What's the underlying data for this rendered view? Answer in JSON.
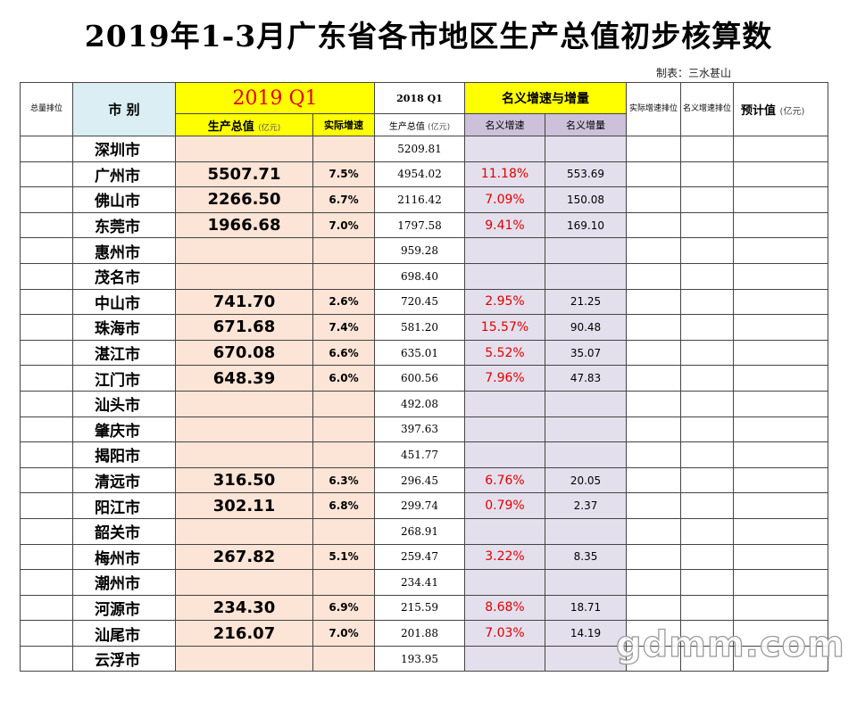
{
  "title": "2019年1-3月广东省各市地区生产总值初步核算数",
  "maker": "制表：三水甚山",
  "headers": {
    "rank_total": "总量排位",
    "city": "市    别",
    "q1_2019": "2019 Q1",
    "y2018_q1": "2018 Q1",
    "nominal": "名义增速与增量",
    "real_rank": "实际增速排位",
    "nominal_rank": "名义增速排位",
    "estimate": "预计值",
    "estimate_unit": "(亿元)",
    "gdp": "生产总值",
    "gdp_unit": "(亿元)",
    "real_growth": "实际增速",
    "gdp_2018": "生产总值",
    "gdp_2018_unit": "(亿元)",
    "nominal_growth": "名义增速",
    "nominal_increase": "名义增量"
  },
  "rows": [
    {
      "city": "深圳市",
      "gdp": "",
      "growth": "",
      "gdp2018": "5209.81",
      "nom_rate": "",
      "nom_inc": ""
    },
    {
      "city": "广州市",
      "gdp": "5507.71",
      "growth": "7.5%",
      "gdp2018": "4954.02",
      "nom_rate": "11.18%",
      "nom_inc": "553.69"
    },
    {
      "city": "佛山市",
      "gdp": "2266.50",
      "growth": "6.7%",
      "gdp2018": "2116.42",
      "nom_rate": "7.09%",
      "nom_inc": "150.08"
    },
    {
      "city": "东莞市",
      "gdp": "1966.68",
      "growth": "7.0%",
      "gdp2018": "1797.58",
      "nom_rate": "9.41%",
      "nom_inc": "169.10"
    },
    {
      "city": "惠州市",
      "gdp": "",
      "growth": "",
      "gdp2018": "959.28",
      "nom_rate": "",
      "nom_inc": ""
    },
    {
      "city": "茂名市",
      "gdp": "",
      "growth": "",
      "gdp2018": "698.40",
      "nom_rate": "",
      "nom_inc": ""
    },
    {
      "city": "中山市",
      "gdp": "741.70",
      "growth": "2.6%",
      "gdp2018": "720.45",
      "nom_rate": "2.95%",
      "nom_inc": "21.25"
    },
    {
      "city": "珠海市",
      "gdp": "671.68",
      "growth": "7.4%",
      "gdp2018": "581.20",
      "nom_rate": "15.57%",
      "nom_inc": "90.48"
    },
    {
      "city": "湛江市",
      "gdp": "670.08",
      "growth": "6.6%",
      "gdp2018": "635.01",
      "nom_rate": "5.52%",
      "nom_inc": "35.07"
    },
    {
      "city": "江门市",
      "gdp": "648.39",
      "growth": "6.0%",
      "gdp2018": "600.56",
      "nom_rate": "7.96%",
      "nom_inc": "47.83"
    },
    {
      "city": "汕头市",
      "gdp": "",
      "growth": "",
      "gdp2018": "492.08",
      "nom_rate": "",
      "nom_inc": ""
    },
    {
      "city": "肇庆市",
      "gdp": "",
      "growth": "",
      "gdp2018": "397.63",
      "nom_rate": "",
      "nom_inc": ""
    },
    {
      "city": "揭阳市",
      "gdp": "",
      "growth": "",
      "gdp2018": "451.77",
      "nom_rate": "",
      "nom_inc": ""
    },
    {
      "city": "清远市",
      "gdp": "316.50",
      "growth": "6.3%",
      "gdp2018": "296.45",
      "nom_rate": "6.76%",
      "nom_inc": "20.05"
    },
    {
      "city": "阳江市",
      "gdp": "302.11",
      "growth": "6.8%",
      "gdp2018": "299.74",
      "nom_rate": "0.79%",
      "nom_inc": "2.37"
    },
    {
      "city": "韶关市",
      "gdp": "",
      "growth": "",
      "gdp2018": "268.91",
      "nom_rate": "",
      "nom_inc": ""
    },
    {
      "city": "梅州市",
      "gdp": "267.82",
      "growth": "5.1%",
      "gdp2018": "259.47",
      "nom_rate": "3.22%",
      "nom_inc": "8.35"
    },
    {
      "city": "潮州市",
      "gdp": "",
      "growth": "",
      "gdp2018": "234.41",
      "nom_rate": "",
      "nom_inc": ""
    },
    {
      "city": "河源市",
      "gdp": "234.30",
      "growth": "6.9%",
      "gdp2018": "215.59",
      "nom_rate": "8.68%",
      "nom_inc": "18.71"
    },
    {
      "city": "汕尾市",
      "gdp": "216.07",
      "growth": "7.0%",
      "gdp2018": "201.88",
      "nom_rate": "7.03%",
      "nom_inc": "14.19"
    },
    {
      "city": "云浮市",
      "gdp": "",
      "growth": "",
      "gdp2018": "193.95",
      "nom_rate": "",
      "nom_inc": ""
    }
  ],
  "watermark": "gdmm.com",
  "colors": {
    "yellow": "#ffff00",
    "city_header_blue": "#daeef3",
    "peach": "#fce4d6",
    "lavender": "#e4dfec",
    "red_text": "#e00000"
  }
}
